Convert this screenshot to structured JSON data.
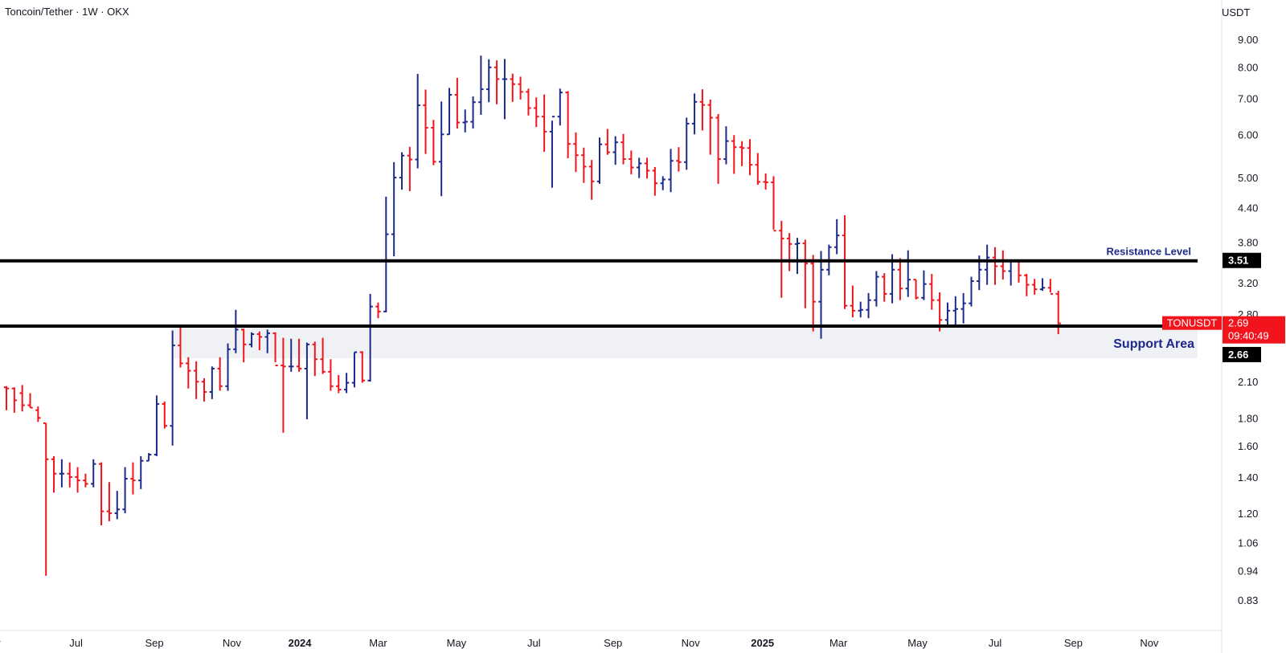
{
  "header": {
    "title": "Toncoin/Tether · 1W · OKX",
    "unit": "USDT"
  },
  "colors": {
    "up": "#1c2a8c",
    "down": "#f2141c",
    "level": "#000000",
    "zone": "#f0f1f4",
    "tag": "#f2141c"
  },
  "chart_data": {
    "type": "ohlc",
    "scale": "log",
    "ylim": [
      0.77,
      10.0
    ],
    "grid": false,
    "y_ticks": [
      "9.00",
      "8.00",
      "7.00",
      "6.00",
      "5.00",
      "4.40",
      "3.80",
      "3.20",
      "2.80",
      "2.10",
      "1.80",
      "1.60",
      "1.40",
      "1.20",
      "1.06",
      "0.94",
      "0.83"
    ],
    "x_ticks": [
      {
        "t": -2,
        "label": "May",
        "bold": false
      },
      {
        "t": 8.8,
        "label": "Jul",
        "bold": false
      },
      {
        "t": 18.7,
        "label": "Sep",
        "bold": false
      },
      {
        "t": 28.5,
        "label": "Nov",
        "bold": false
      },
      {
        "t": 37.1,
        "label": "2024",
        "bold": true
      },
      {
        "t": 47.0,
        "label": "Mar",
        "bold": false
      },
      {
        "t": 56.9,
        "label": "May",
        "bold": false
      },
      {
        "t": 66.7,
        "label": "Jul",
        "bold": false
      },
      {
        "t": 76.7,
        "label": "Sep",
        "bold": false
      },
      {
        "t": 86.5,
        "label": "Nov",
        "bold": false
      },
      {
        "t": 95.6,
        "label": "2025",
        "bold": true
      },
      {
        "t": 105.2,
        "label": "Mar",
        "bold": false
      },
      {
        "t": 115.2,
        "label": "May",
        "bold": false
      },
      {
        "t": 125.0,
        "label": "Jul",
        "bold": false
      },
      {
        "t": 134.9,
        "label": "Sep",
        "bold": false
      },
      {
        "t": 144.5,
        "label": "Nov",
        "bold": false
      }
    ],
    "levels": [
      {
        "name": "Resistance Level",
        "value": 3.51,
        "label": "3.51"
      },
      {
        "name": "Support",
        "value": 2.66,
        "label": "2.66"
      }
    ],
    "zone": {
      "label": "Support Area",
      "from": 2.32,
      "to": 2.66
    },
    "last_price": {
      "symbol": "TONUSDT",
      "price": "2.69",
      "countdown": "09:40:49"
    },
    "bars": [
      [
        2.05,
        2.06,
        1.86,
        2.04
      ],
      [
        2.04,
        2.05,
        1.84,
        1.94
      ],
      [
        2.0,
        2.07,
        1.85,
        1.9
      ],
      [
        1.9,
        2.0,
        1.88,
        1.88
      ],
      [
        1.86,
        1.89,
        1.77,
        1.8
      ],
      [
        1.76,
        1.76,
        0.92,
        1.51
      ],
      [
        1.51,
        1.53,
        1.31,
        1.42
      ],
      [
        1.42,
        1.51,
        1.34,
        1.42
      ],
      [
        1.42,
        1.49,
        1.34,
        1.4
      ],
      [
        1.4,
        1.46,
        1.31,
        1.38
      ],
      [
        1.38,
        1.42,
        1.34,
        1.36
      ],
      [
        1.36,
        1.51,
        1.34,
        1.48
      ],
      [
        1.48,
        1.49,
        1.14,
        1.21
      ],
      [
        1.21,
        1.37,
        1.16,
        1.2
      ],
      [
        1.2,
        1.32,
        1.17,
        1.22
      ],
      [
        1.22,
        1.46,
        1.2,
        1.39
      ],
      [
        1.39,
        1.49,
        1.3,
        1.38
      ],
      [
        1.38,
        1.53,
        1.33,
        1.5
      ],
      [
        1.5,
        1.55,
        1.5,
        1.54
      ],
      [
        1.54,
        1.98,
        1.53,
        1.91
      ],
      [
        1.91,
        1.93,
        1.72,
        1.74
      ],
      [
        1.74,
        2.61,
        1.6,
        2.45
      ],
      [
        2.45,
        2.65,
        2.23,
        2.27
      ],
      [
        2.27,
        2.33,
        2.04,
        2.2
      ],
      [
        2.2,
        2.29,
        1.95,
        2.1
      ],
      [
        2.1,
        2.13,
        1.93,
        2.01
      ],
      [
        2.01,
        2.24,
        1.95,
        2.22
      ],
      [
        2.22,
        2.33,
        2.02,
        2.06
      ],
      [
        2.06,
        2.47,
        2.02,
        2.41
      ],
      [
        2.41,
        2.85,
        2.37,
        2.62
      ],
      [
        2.62,
        2.63,
        2.28,
        2.46
      ],
      [
        2.46,
        2.59,
        2.43,
        2.57
      ],
      [
        2.57,
        2.6,
        2.4,
        2.54
      ],
      [
        2.54,
        2.62,
        2.37,
        2.58
      ],
      [
        2.58,
        2.59,
        2.28,
        2.25
      ],
      [
        2.25,
        2.53,
        1.69,
        2.24
      ],
      [
        2.24,
        2.52,
        2.19,
        2.24
      ],
      [
        2.24,
        2.52,
        2.19,
        2.22
      ],
      [
        2.22,
        2.48,
        1.79,
        2.46
      ],
      [
        2.46,
        2.49,
        2.15,
        2.31
      ],
      [
        2.31,
        2.53,
        2.17,
        2.19
      ],
      [
        2.19,
        2.31,
        2.02,
        2.06
      ],
      [
        2.06,
        2.16,
        2.0,
        2.03
      ],
      [
        2.03,
        2.18,
        2.0,
        2.09
      ],
      [
        2.09,
        2.38,
        2.05,
        2.38
      ],
      [
        2.38,
        2.39,
        2.09,
        2.11
      ],
      [
        2.11,
        3.05,
        2.1,
        2.89
      ],
      [
        2.89,
        2.94,
        2.75,
        2.83
      ],
      [
        2.83,
        4.61,
        2.82,
        3.93
      ],
      [
        3.93,
        5.34,
        3.58,
        5.0
      ],
      [
        5.0,
        5.57,
        4.75,
        5.49
      ],
      [
        5.49,
        5.7,
        4.72,
        5.4
      ],
      [
        5.4,
        7.77,
        5.2,
        6.8
      ],
      [
        6.8,
        7.27,
        5.53,
        6.18
      ],
      [
        6.18,
        6.39,
        5.27,
        5.35
      ],
      [
        5.35,
        6.91,
        4.62,
        6.01
      ],
      [
        6.01,
        7.32,
        6.0,
        7.11
      ],
      [
        7.11,
        7.64,
        6.16,
        6.32
      ],
      [
        6.32,
        6.68,
        6.06,
        6.34
      ],
      [
        6.34,
        7.06,
        6.16,
        6.89
      ],
      [
        6.89,
        8.4,
        6.53,
        7.28
      ],
      [
        7.28,
        8.27,
        6.89,
        7.99
      ],
      [
        7.99,
        8.23,
        6.83,
        7.6
      ],
      [
        7.6,
        8.28,
        6.41,
        7.6
      ],
      [
        7.6,
        7.78,
        6.9,
        7.44
      ],
      [
        7.44,
        7.68,
        6.97,
        7.2
      ],
      [
        7.2,
        7.3,
        6.51,
        6.72
      ],
      [
        6.72,
        7.03,
        6.2,
        6.48
      ],
      [
        6.48,
        7.12,
        5.58,
        6.08
      ],
      [
        6.08,
        6.37,
        4.79,
        6.48
      ],
      [
        6.48,
        7.3,
        6.24,
        7.18
      ],
      [
        7.18,
        7.22,
        5.43,
        5.77
      ],
      [
        5.77,
        6.06,
        5.12,
        5.5
      ],
      [
        5.5,
        5.68,
        4.89,
        5.24
      ],
      [
        5.24,
        5.39,
        4.55,
        4.92
      ],
      [
        4.92,
        5.93,
        4.87,
        5.76
      ],
      [
        5.76,
        6.15,
        5.51,
        5.57
      ],
      [
        5.57,
        5.96,
        5.28,
        5.81
      ],
      [
        5.81,
        6.02,
        5.29,
        5.41
      ],
      [
        5.41,
        5.61,
        5.07,
        5.22
      ],
      [
        5.22,
        5.44,
        4.99,
        5.31
      ],
      [
        5.31,
        5.44,
        4.98,
        5.15
      ],
      [
        5.15,
        5.23,
        4.63,
        4.88
      ],
      [
        4.88,
        5.03,
        4.74,
        4.96
      ],
      [
        4.96,
        5.65,
        4.7,
        5.37
      ],
      [
        5.37,
        5.69,
        5.13,
        5.34
      ],
      [
        5.34,
        6.45,
        5.17,
        6.29
      ],
      [
        6.29,
        7.15,
        6.01,
        6.9
      ],
      [
        6.9,
        7.28,
        6.11,
        6.81
      ],
      [
        6.81,
        6.97,
        5.51,
        6.45
      ],
      [
        6.45,
        6.55,
        4.87,
        5.41
      ],
      [
        5.41,
        6.22,
        5.29,
        5.84
      ],
      [
        5.84,
        5.99,
        5.08,
        5.69
      ],
      [
        5.69,
        5.84,
        5.25,
        5.67
      ],
      [
        5.67,
        5.89,
        5.05,
        5.28
      ],
      [
        5.28,
        5.55,
        4.85,
        4.91
      ],
      [
        4.91,
        5.09,
        4.75,
        4.9
      ],
      [
        4.9,
        5.03,
        4.01,
        3.99
      ],
      [
        3.99,
        4.16,
        3.0,
        3.86
      ],
      [
        3.86,
        3.95,
        3.36,
        3.77
      ],
      [
        3.77,
        3.87,
        3.32,
        3.78
      ],
      [
        3.78,
        3.84,
        2.87,
        3.47
      ],
      [
        3.47,
        3.6,
        2.6,
        2.95
      ],
      [
        2.95,
        3.66,
        2.52,
        3.38
      ],
      [
        3.38,
        3.76,
        3.3,
        3.72
      ],
      [
        3.72,
        4.19,
        3.61,
        3.91
      ],
      [
        3.91,
        4.26,
        2.86,
        2.9
      ],
      [
        2.9,
        3.16,
        2.76,
        2.84
      ],
      [
        2.84,
        2.95,
        2.76,
        2.85
      ],
      [
        2.85,
        3.06,
        2.75,
        2.97
      ],
      [
        2.97,
        3.36,
        2.89,
        3.28
      ],
      [
        3.28,
        3.33,
        2.95,
        3.05
      ],
      [
        3.05,
        3.61,
        2.93,
        3.38
      ],
      [
        3.38,
        3.55,
        2.97,
        3.12
      ],
      [
        3.12,
        3.67,
        3.01,
        3.24
      ],
      [
        3.24,
        3.24,
        2.98,
        3.0
      ],
      [
        3.0,
        3.37,
        2.97,
        3.18
      ],
      [
        3.18,
        3.32,
        2.85,
        2.97
      ],
      [
        2.97,
        3.07,
        2.6,
        2.73
      ],
      [
        2.73,
        2.94,
        2.66,
        2.84
      ],
      [
        2.84,
        3.02,
        2.67,
        2.86
      ],
      [
        2.86,
        3.06,
        2.69,
        2.93
      ],
      [
        2.93,
        3.28,
        2.89,
        3.22
      ],
      [
        3.22,
        3.59,
        3.1,
        3.38
      ],
      [
        3.38,
        3.76,
        3.17,
        3.56
      ],
      [
        3.56,
        3.72,
        3.17,
        3.43
      ],
      [
        3.43,
        3.67,
        3.24,
        3.36
      ],
      [
        3.36,
        3.5,
        3.16,
        3.51
      ],
      [
        3.51,
        3.51,
        3.2,
        3.3
      ],
      [
        3.3,
        3.32,
        3.02,
        3.17
      ],
      [
        3.17,
        3.25,
        3.04,
        3.11
      ],
      [
        3.11,
        3.26,
        3.09,
        3.13
      ],
      [
        3.13,
        3.25,
        3.07,
        3.05
      ],
      [
        3.05,
        3.09,
        2.57,
        2.69
      ]
    ]
  }
}
